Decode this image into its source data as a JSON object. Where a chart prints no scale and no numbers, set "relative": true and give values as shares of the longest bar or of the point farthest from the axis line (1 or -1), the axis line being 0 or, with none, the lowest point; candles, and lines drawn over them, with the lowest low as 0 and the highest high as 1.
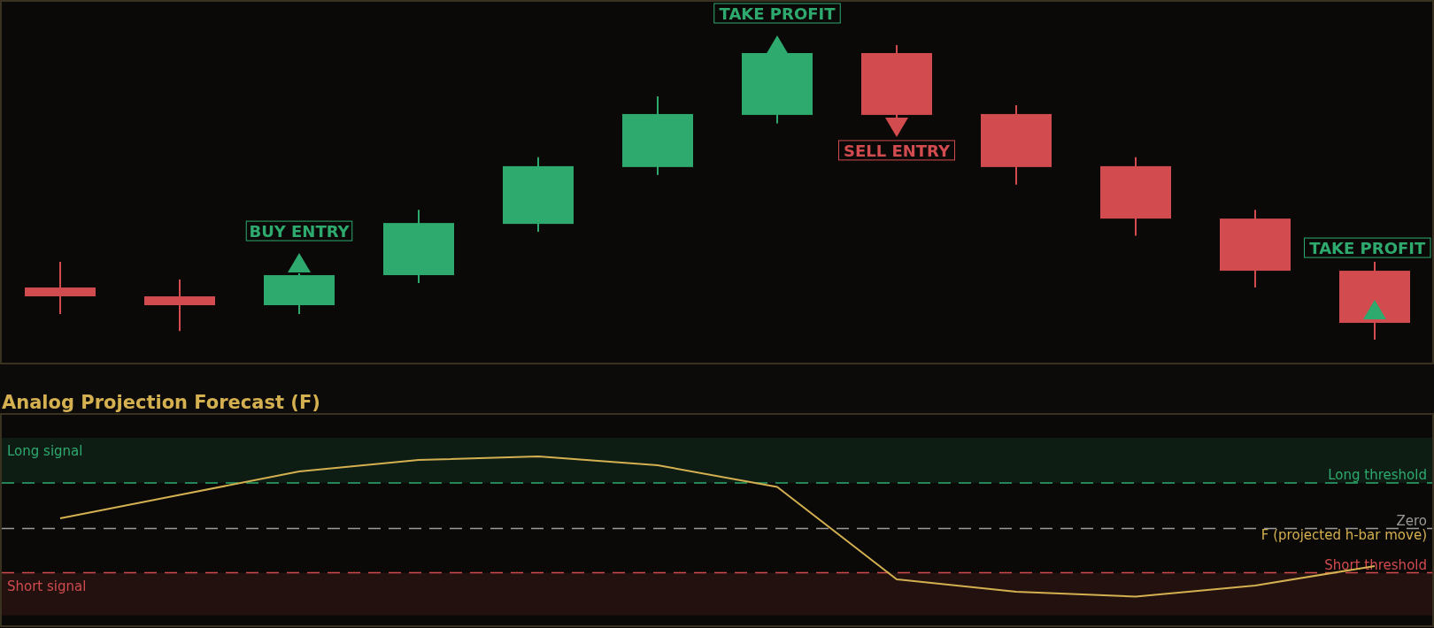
{
  "chart_data": [
    {
      "type": "candlestick",
      "relative": true,
      "categories": [
        null,
        null,
        null,
        null,
        null,
        null,
        null,
        null,
        null,
        null,
        null,
        null
      ],
      "ohlc": [
        [
          0.177,
          0.264,
          0.087,
          0.147
        ],
        [
          0.147,
          0.204,
          0.029,
          0.117
        ],
        [
          0.117,
          0.225,
          0.087,
          0.219
        ],
        [
          0.219,
          0.441,
          0.192,
          0.396
        ],
        [
          0.393,
          0.619,
          0.366,
          0.589
        ],
        [
          0.586,
          0.826,
          0.559,
          0.766
        ],
        [
          0.763,
          0.982,
          0.734,
          0.973
        ],
        [
          0.973,
          1,
          0.754,
          0.763
        ],
        [
          0.766,
          0.796,
          0.526,
          0.586
        ],
        [
          0.589,
          0.619,
          0.353,
          0.411
        ],
        [
          0.411,
          0.441,
          0.177,
          0.234
        ],
        [
          0.234,
          0.264,
          0,
          0.057
        ]
      ],
      "colors": [
        "#d24b4e",
        "#d24b4e",
        "#2eaa6e",
        "#2eaa6e",
        "#2eaa6e",
        "#2eaa6e",
        "#2eaa6e",
        "#d24b4e",
        "#d24b4e",
        "#d24b4e",
        "#d24b4e",
        "#d24b4e"
      ],
      "series": [
        {
          "type": "scatter",
          "marker": "triangle",
          "color": "#2eaa6e",
          "values": [
            null,
            null,
            0.261,
            null,
            null,
            null,
            1.0,
            null,
            null,
            null,
            null,
            0.102
          ]
        },
        {
          "type": "scatter",
          "marker": "triangle",
          "color": "#d24b4e",
          "values": [
            null,
            null,
            null,
            null,
            null,
            null,
            null,
            0.721,
            null,
            null,
            null,
            null
          ]
        }
      ],
      "annotations": [
        "BUY ENTRY",
        "TAKE PROFIT",
        "SELL ENTRY",
        "TAKE PROFIT"
      ]
    },
    {
      "type": "line",
      "relative": true,
      "title": "Analog Projection Forecast (F)",
      "legend": false,
      "categories": [
        null,
        null,
        null,
        null,
        null,
        null,
        null,
        null,
        null,
        null,
        null,
        null
      ],
      "series": [
        {
          "name": "F (projected h-bar move)",
          "color": "#d4b050",
          "values": [
            0.141,
            0.466,
            0.791,
            0.951,
            1,
            0.877,
            0.577,
            -0.706,
            -0.877,
            -0.945,
            -0.791,
            -0.521
          ]
        }
      ],
      "ref_lines": [
        {
          "axis": "y",
          "value": 0.632,
          "label": "Long threshold",
          "color": "#2eaa6e",
          "line_style": "dashed"
        },
        {
          "axis": "y",
          "value": 0,
          "label": "Zero",
          "color": "#9a9a9a",
          "line_style": "dashed"
        },
        {
          "axis": "y",
          "value": -0.615,
          "label": "Short threshold",
          "color": "#d24b4e",
          "line_style": "dashed"
        }
      ],
      "bands": [
        {
          "axis": "y",
          "from": 0.632,
          "to": 1.258,
          "label": "Long signal",
          "color": "#2eaa6e"
        },
        {
          "axis": "y",
          "from": -0.615,
          "to": -1.204,
          "label": "Short signal",
          "color": "#d24b4e"
        }
      ]
    }
  ]
}
